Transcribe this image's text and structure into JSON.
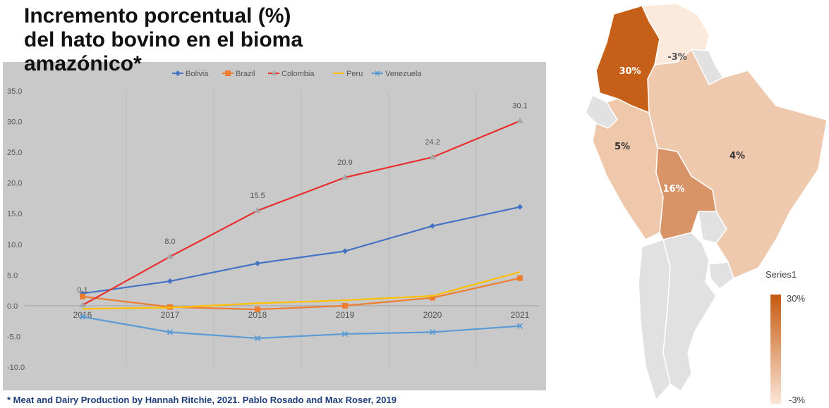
{
  "title": "Incremento porcentual (%)\ndel hato bovino en el bioma\namazónico*",
  "footnote": "* Meat and Dairy Production by Hannah Ritchie, 2021. Pablo Rosado and Max Roser, 2019",
  "chart_data": [
    {
      "type": "line",
      "x": [
        "2016",
        "2017",
        "2018",
        "2019",
        "2020",
        "2021"
      ],
      "ylim": [
        -10,
        35
      ],
      "yticks": [
        "35.0",
        "30.0",
        "25.0",
        "20.0",
        "15.0",
        "10.0",
        "5.0",
        "0.0",
        "-5.0",
        "-10.0"
      ],
      "grid": "vertical",
      "legend_position": "top",
      "series": [
        {
          "name": "Bolivia",
          "values": [
            2.0,
            4.0,
            6.9,
            8.9,
            13.0,
            16.1
          ],
          "color": "#4472c4",
          "marker": "diamond"
        },
        {
          "name": "Brazil",
          "values": [
            1.5,
            -0.2,
            -0.6,
            0.0,
            1.3,
            4.5
          ],
          "color": "#ed7d31",
          "marker": "square"
        },
        {
          "name": "Colombia",
          "values": [
            0.1,
            8.0,
            15.5,
            20.9,
            24.2,
            30.1
          ],
          "color": "#e8312f",
          "marker": "triangle",
          "labels": [
            "0.1",
            "8.0",
            "15.5",
            "20.9",
            "24.2",
            "30.1"
          ]
        },
        {
          "name": "Peru",
          "values": [
            -0.5,
            -0.3,
            0.4,
            0.9,
            1.6,
            5.5
          ],
          "color": "#ffc000",
          "marker": "none"
        },
        {
          "name": "Venezuela",
          "values": [
            -1.8,
            -4.3,
            -5.3,
            -4.6,
            -4.3,
            -3.3
          ],
          "color": "#5b9bd5",
          "marker": "x"
        }
      ]
    },
    {
      "type": "choropleth",
      "legend_title": "Series1",
      "scale": {
        "max_label": "30%",
        "min_label": "-3%",
        "max_color": "#c55a11",
        "min_color": "#fbe5d6"
      },
      "regions": [
        {
          "country": "Colombia",
          "value": 30,
          "label": "30%",
          "color": "#c65f17"
        },
        {
          "country": "Venezuela",
          "value": -3,
          "label": "-3%",
          "color": "#fbe9dc"
        },
        {
          "country": "Peru",
          "value": 5,
          "label": "5%",
          "color": "#efc7ab"
        },
        {
          "country": "Brazil",
          "value": 4,
          "label": "4%",
          "color": "#efc9ae"
        },
        {
          "country": "Bolivia",
          "value": 16,
          "label": "16%",
          "color": "#d89467"
        }
      ]
    }
  ]
}
